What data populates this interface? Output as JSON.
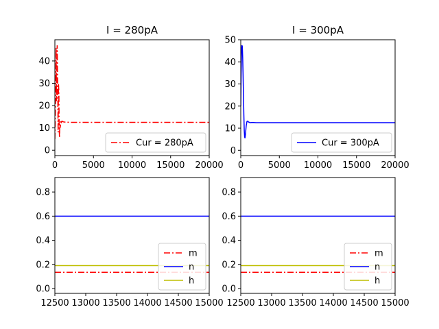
{
  "chart_data": [
    {
      "type": "line",
      "title": "I = 280pA",
      "xlim": [
        0,
        20000
      ],
      "ylim": [
        -2.4,
        49.5
      ],
      "xticks": [
        0,
        5000,
        10000,
        15000,
        20000
      ],
      "yticks": [
        0,
        10,
        20,
        30,
        40
      ],
      "legend_position": "lower-right",
      "series": [
        {
          "name": "Cur = 280pA",
          "color": "#ff0000",
          "dash": "dashdot",
          "x": [
            0,
            80,
            150,
            220,
            300,
            360,
            420,
            470,
            520,
            560,
            600,
            640,
            680,
            720,
            780,
            850,
            950,
            1100,
            1300,
            1600,
            2000,
            20000
          ],
          "y": [
            5,
            20,
            46,
            22,
            47,
            30,
            8,
            30,
            26,
            10,
            5.5,
            12,
            10,
            11,
            13.5,
            12.5,
            13,
            12.7,
            12.6,
            12.6,
            12.5,
            12.5
          ]
        }
      ]
    },
    {
      "type": "line",
      "title": "I = 300pA",
      "xlim": [
        0,
        20000
      ],
      "ylim": [
        -2.4,
        50
      ],
      "xticks": [
        0,
        5000,
        10000,
        15000,
        20000
      ],
      "yticks": [
        0,
        10,
        20,
        30,
        40,
        50
      ],
      "legend_position": "lower-right",
      "series": [
        {
          "name": "Cur = 300pA",
          "color": "#0000ff",
          "dash": "solid",
          "x": [
            0,
            50,
            100,
            150,
            200,
            250,
            300,
            350,
            400,
            450,
            500,
            550,
            600,
            700,
            800,
            900,
            1000,
            1200,
            1500,
            2000,
            20000
          ],
          "y": [
            20,
            35,
            46,
            47.5,
            47,
            42,
            34,
            25,
            16,
            9,
            6,
            5.5,
            7,
            11,
            13,
            13.2,
            12.8,
            12.5,
            12.6,
            12.5,
            12.5
          ]
        }
      ]
    },
    {
      "type": "line",
      "title": "",
      "xlim": [
        12500,
        15000
      ],
      "ylim": [
        -0.04,
        0.92
      ],
      "xticks": [
        12500,
        13000,
        13500,
        14000,
        14500,
        15000
      ],
      "yticks": [
        0.0,
        0.2,
        0.4,
        0.6,
        0.8
      ],
      "legend_position": "lower-right",
      "series": [
        {
          "name": "m",
          "color": "#ff0000",
          "dash": "dashdot",
          "x": [
            12500,
            15000
          ],
          "y": [
            0.135,
            0.135
          ]
        },
        {
          "name": "n",
          "color": "#0000ff",
          "dash": "solid",
          "x": [
            12500,
            15000
          ],
          "y": [
            0.6,
            0.6
          ]
        },
        {
          "name": "h",
          "color": "#bfbf00",
          "dash": "solid",
          "x": [
            12500,
            15000
          ],
          "y": [
            0.19,
            0.19
          ]
        }
      ]
    },
    {
      "type": "line",
      "title": "",
      "xlim": [
        12500,
        15000
      ],
      "ylim": [
        -0.04,
        0.92
      ],
      "xticks": [
        12500,
        13000,
        13500,
        14000,
        14500,
        15000
      ],
      "yticks": [
        0.0,
        0.2,
        0.4,
        0.6,
        0.8
      ],
      "legend_position": "lower-right",
      "series": [
        {
          "name": "m",
          "color": "#ff0000",
          "dash": "dashdot",
          "x": [
            12500,
            15000
          ],
          "y": [
            0.135,
            0.135
          ]
        },
        {
          "name": "n",
          "color": "#0000ff",
          "dash": "solid",
          "x": [
            12500,
            15000
          ],
          "y": [
            0.6,
            0.6
          ]
        },
        {
          "name": "h",
          "color": "#bfbf00",
          "dash": "solid",
          "x": [
            12500,
            15000
          ],
          "y": [
            0.19,
            0.19
          ]
        }
      ]
    }
  ]
}
